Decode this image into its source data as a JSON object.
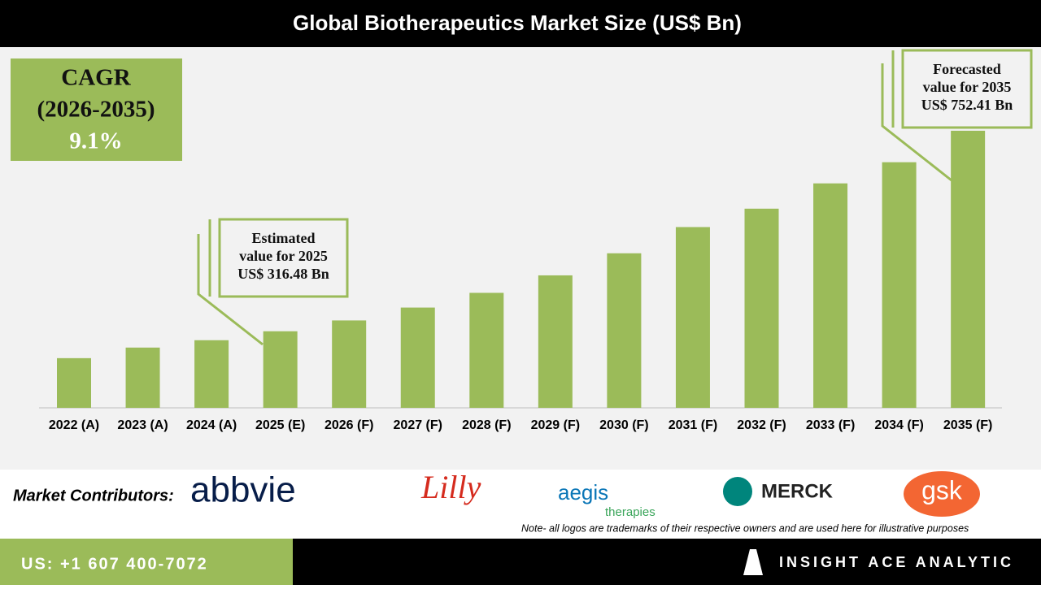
{
  "chart_data": {
    "type": "bar",
    "title": "Global Biotherapeutics Market Size (US$ Bn)",
    "categories": [
      "2022 (A)",
      "2023 (A)",
      "2024 (A)",
      "2025 (E)",
      "2026 (F)",
      "2027 (F)",
      "2028 (F)",
      "2029 (F)",
      "2030 (F)",
      "2031 (F)",
      "2032 (F)",
      "2033 (F)",
      "2034 (F)",
      "2035 (F)"
    ],
    "values": [
      258,
      281,
      297,
      316.48,
      340,
      368,
      400,
      438,
      486,
      543,
      583,
      638,
      684,
      752.41
    ],
    "color": "#9bbb59",
    "ylim": [
      150,
      800
    ],
    "annotations": [
      [
        "Estimated",
        "value for 2025",
        "US$ 316.48 Bn"
      ],
      [
        "Forecasted",
        "value for 2035",
        "US$ 752.41 Bn"
      ]
    ]
  },
  "cagr": {
    "label": "CAGR",
    "period": "(2026-2035)",
    "value": "9.1%"
  },
  "contributors": {
    "label": "Market Contributors:",
    "logos": [
      "abbvie",
      "Lilly",
      "aegis",
      "therapies",
      "MERCK",
      "gsk"
    ],
    "note": "Note- all logos are trademarks of their respective owners and are used here for illustrative purposes"
  },
  "footer": {
    "phone": "US: +1 607 400-7072",
    "brand": "INSIGHT ACE ANALYTIC"
  }
}
